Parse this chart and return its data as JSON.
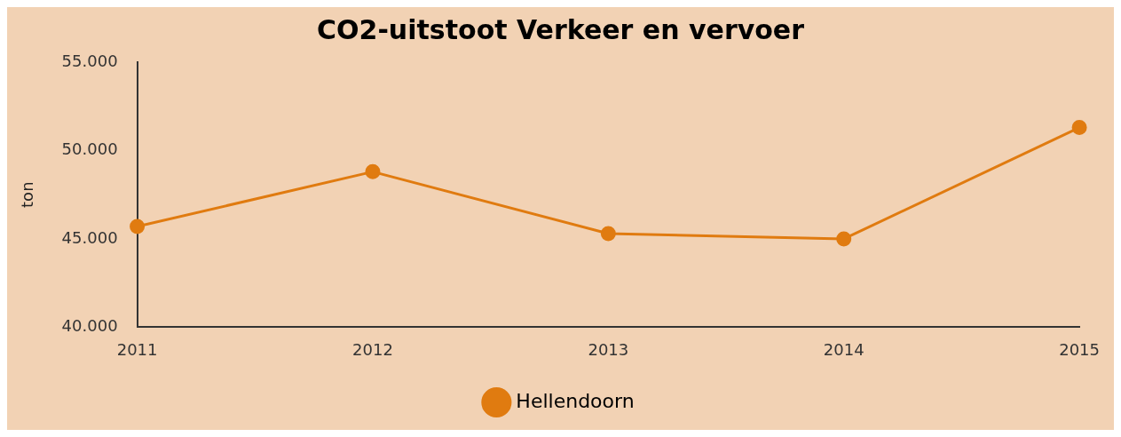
{
  "chart_data": {
    "type": "line",
    "title": "CO2-uitstoot Verkeer en vervoer",
    "ylabel": "ton",
    "categories": [
      "2011",
      "2012",
      "2013",
      "2014",
      "2015"
    ],
    "series": [
      {
        "name": "Hellendoorn",
        "color": "#e07b10",
        "values": [
          45700,
          48800,
          45300,
          45000,
          51300
        ]
      }
    ],
    "ylim": [
      40000,
      55000
    ],
    "yticks": [
      {
        "value": 40000,
        "label": "40.000"
      },
      {
        "value": 45000,
        "label": "45.000"
      },
      {
        "value": 50000,
        "label": "50.000"
      },
      {
        "value": 55000,
        "label": "55.000"
      }
    ],
    "grid": false,
    "legend": "bottom",
    "marker": "circle",
    "line_style": "solid"
  }
}
